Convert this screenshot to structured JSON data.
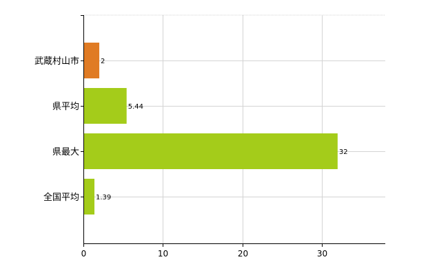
{
  "chart_data": {
    "type": "bar",
    "orientation": "horizontal",
    "categories": [
      "武蔵村山市",
      "県平均",
      "県最大",
      "全国平均"
    ],
    "values": [
      2,
      5.44,
      32,
      1.39
    ],
    "data_labels": [
      "2",
      "5.44",
      "32",
      "1.39"
    ],
    "bar_colors": [
      "#e07b24",
      "#a4cc1a",
      "#a4cc1a",
      "#a4cc1a"
    ],
    "xlim": [
      0,
      38
    ],
    "xticks": [
      0,
      10,
      20,
      30
    ],
    "xtick_labels": [
      "0",
      "10",
      "20",
      "30"
    ],
    "grid": true,
    "legend": false,
    "title": "",
    "xlabel": "",
    "ylabel": ""
  },
  "colors": {
    "highlight": "#e07b24",
    "comparison": "#a4cc1a",
    "grid": "#d3d3d3",
    "axis": "#000000"
  }
}
